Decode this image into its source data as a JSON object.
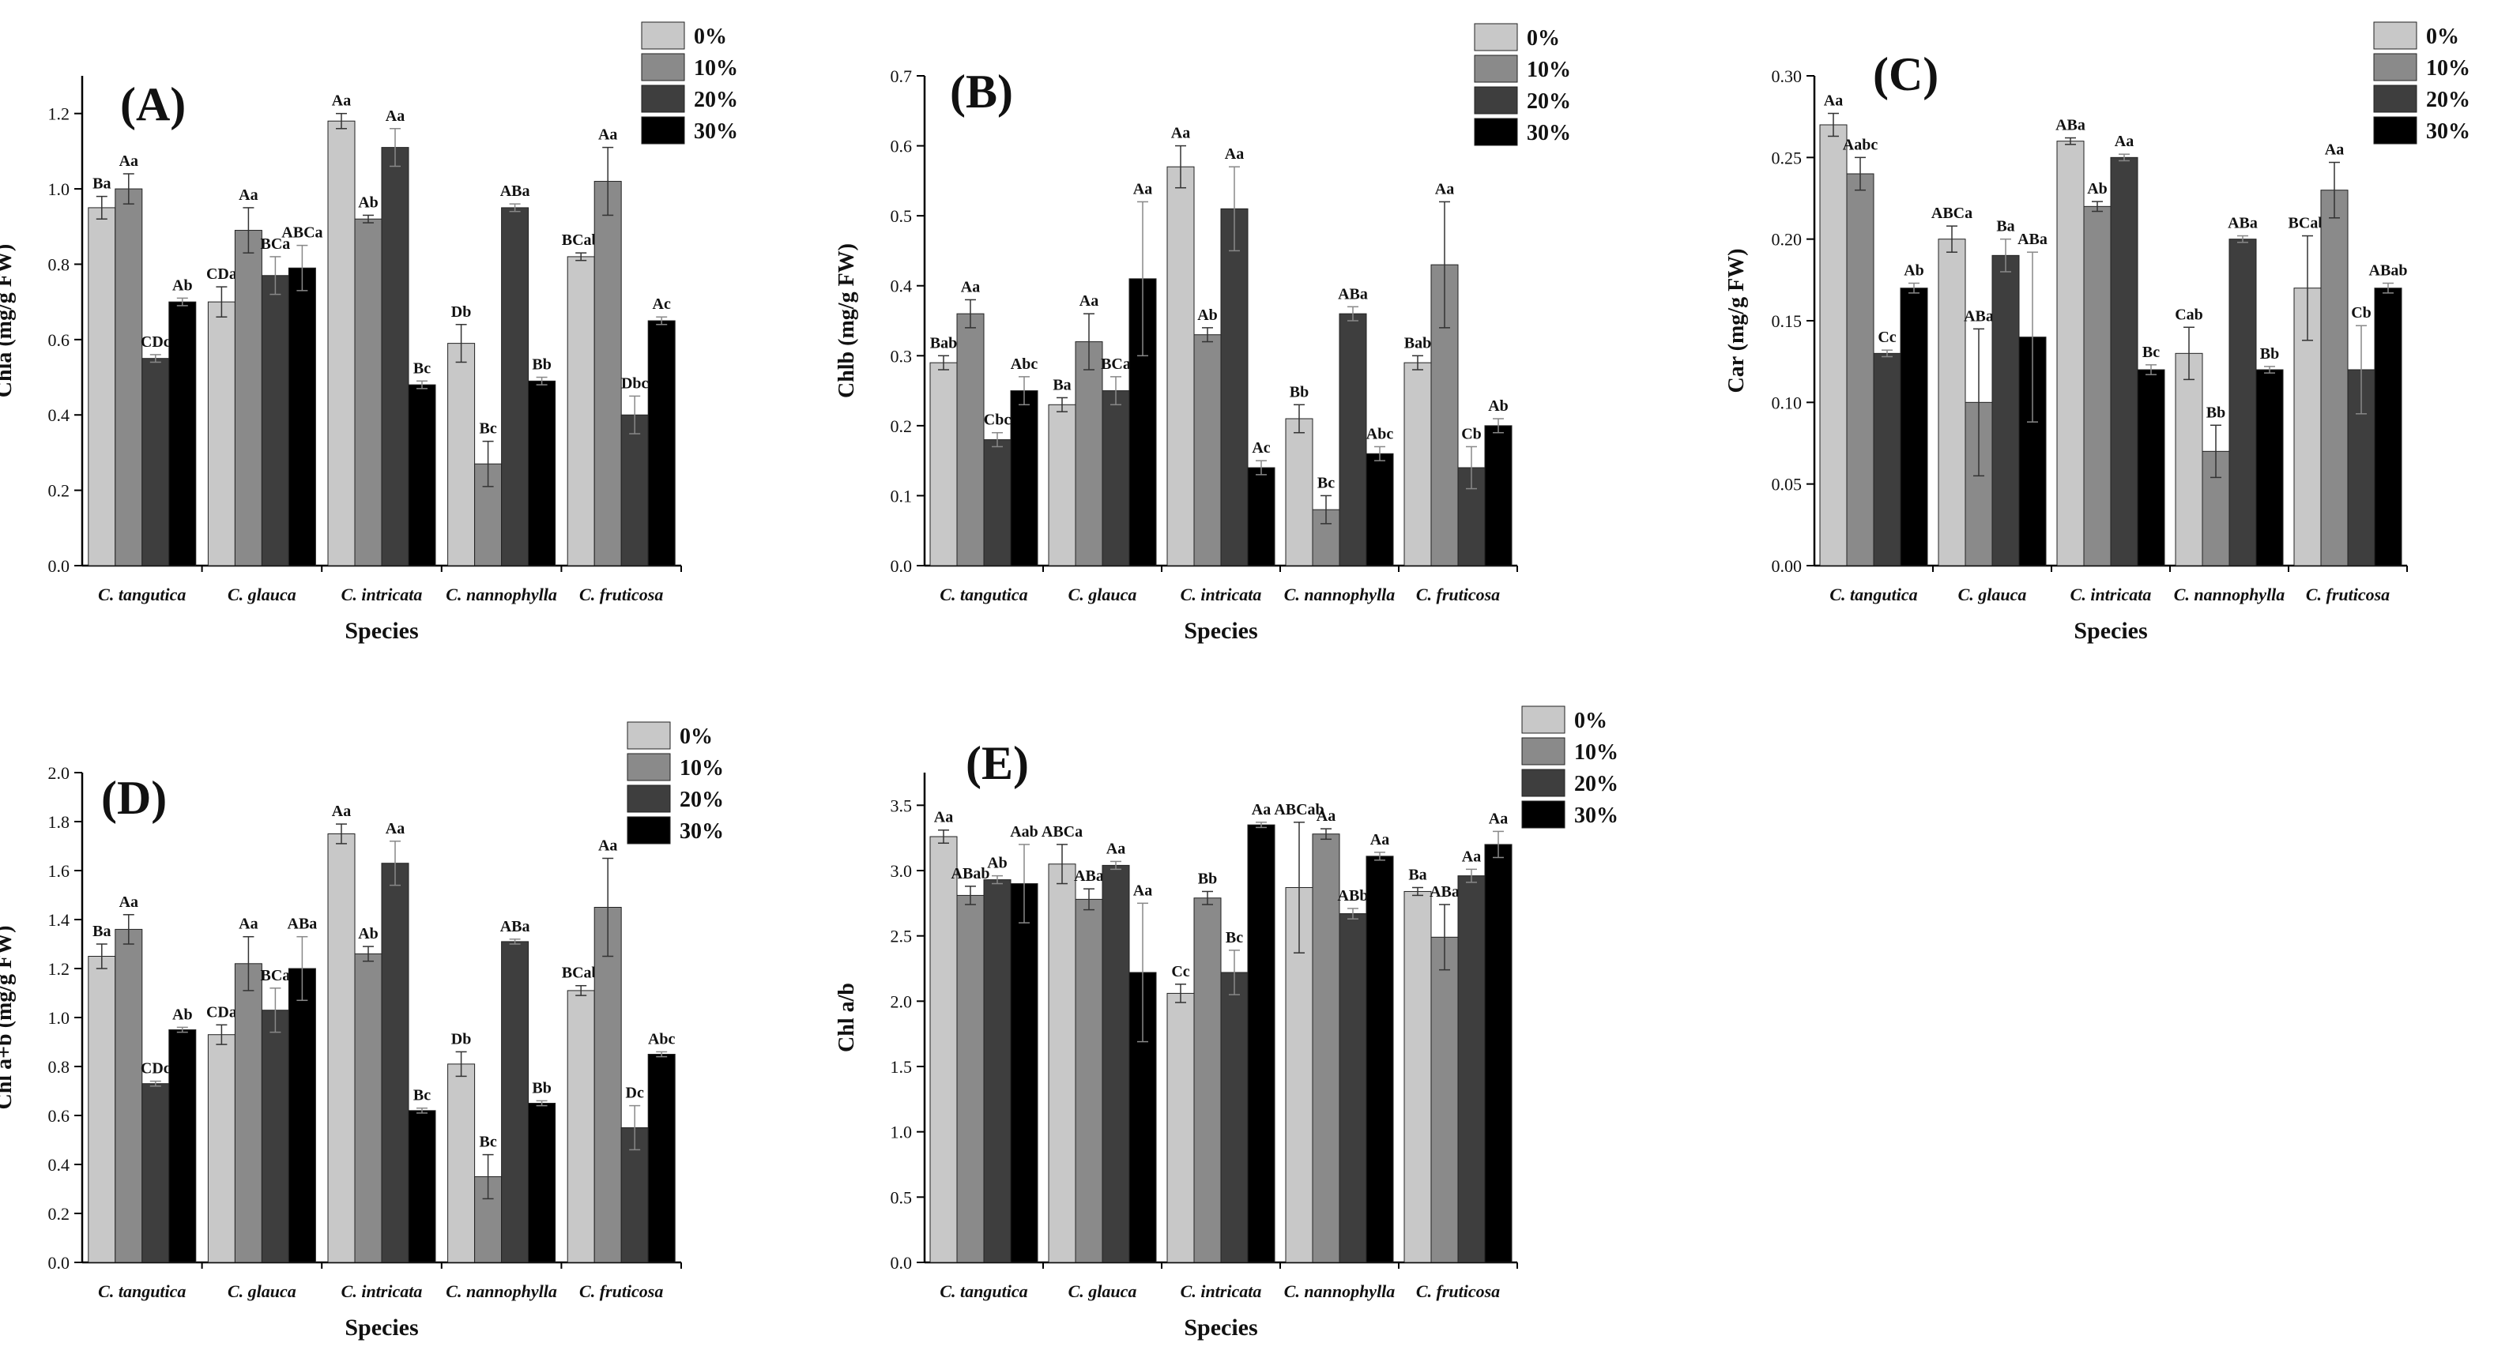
{
  "legend": [
    "0%",
    "10%",
    "20%",
    "30%"
  ],
  "colors": [
    "#c8c8c8",
    "#8a8a8a",
    "#3e3e3e",
    "#000000"
  ],
  "chart_data": [
    {
      "type": "bar",
      "panel": "(A)",
      "ylabel": "Chla (mg/g FW)",
      "xlabel": "Species",
      "categories": [
        "C. tangutica",
        "C. glauca",
        "C. intricata",
        "C. nannophylla",
        "C. fruticosa"
      ],
      "ylim": [
        0,
        1.3
      ],
      "yticks": [
        "0.0",
        "0.2",
        "0.4",
        "0.6",
        "0.8",
        "1.0",
        "1.2"
      ],
      "yticks_values": [
        0,
        0.2,
        0.4,
        0.6,
        0.8,
        1.0,
        1.2
      ],
      "series": [
        {
          "name": "0%",
          "values": [
            0.95,
            0.7,
            1.18,
            0.59,
            0.82
          ],
          "errors": [
            0.03,
            0.04,
            0.02,
            0.05,
            0.01
          ],
          "sig": [
            "Ba",
            "CDa",
            "Aa",
            "Db",
            "BCab"
          ]
        },
        {
          "name": "10%",
          "values": [
            1.0,
            0.89,
            0.92,
            0.27,
            1.02
          ],
          "errors": [
            0.04,
            0.06,
            0.01,
            0.06,
            0.09
          ],
          "sig": [
            "Aa",
            "Aa",
            "Ab",
            "Bc",
            "Aa"
          ]
        },
        {
          "name": "20%",
          "values": [
            0.55,
            0.77,
            1.11,
            0.95,
            0.4
          ],
          "errors": [
            0.01,
            0.05,
            0.05,
            0.01,
            0.05
          ],
          "sig": [
            "CDc",
            "BCa",
            "Aa",
            "ABa",
            "Dbc"
          ]
        },
        {
          "name": "30%",
          "values": [
            0.7,
            0.79,
            0.48,
            0.49,
            0.65
          ],
          "errors": [
            0.01,
            0.06,
            0.01,
            0.01,
            0.01
          ],
          "sig": [
            "Ab",
            "ABCa",
            "Bc",
            "Bb",
            "Ac"
          ]
        }
      ]
    },
    {
      "type": "bar",
      "panel": "(B)",
      "ylabel": "Chlb (mg/g FW)",
      "xlabel": "Species",
      "categories": [
        "C. tangutica",
        "C. glauca",
        "C. intricata",
        "C. nannophylla",
        "C. fruticosa"
      ],
      "ylim": [
        0,
        0.7
      ],
      "yticks": [
        "0.0",
        "0.1",
        "0.2",
        "0.3",
        "0.4",
        "0.5",
        "0.6",
        "0.7"
      ],
      "yticks_values": [
        0,
        0.1,
        0.2,
        0.3,
        0.4,
        0.5,
        0.6,
        0.7
      ],
      "series": [
        {
          "name": "0%",
          "values": [
            0.29,
            0.23,
            0.57,
            0.21,
            0.29
          ],
          "errors": [
            0.01,
            0.01,
            0.03,
            0.02,
            0.01
          ],
          "sig": [
            "Bab",
            "Ba",
            "Aa",
            "Bb",
            "Bab"
          ]
        },
        {
          "name": "10%",
          "values": [
            0.36,
            0.32,
            0.33,
            0.08,
            0.43
          ],
          "errors": [
            0.02,
            0.04,
            0.01,
            0.02,
            0.09
          ],
          "sig": [
            "Aa",
            "Aa",
            "Ab",
            "Bc",
            "Aa"
          ]
        },
        {
          "name": "20%",
          "values": [
            0.18,
            0.25,
            0.51,
            0.36,
            0.14
          ],
          "errors": [
            0.01,
            0.02,
            0.06,
            0.01,
            0.03
          ],
          "sig": [
            "Cbc",
            "BCa",
            "Aa",
            "ABa",
            "Cb"
          ]
        },
        {
          "name": "30%",
          "values": [
            0.25,
            0.41,
            0.14,
            0.16,
            0.2
          ],
          "errors": [
            0.02,
            0.11,
            0.01,
            0.01,
            0.01
          ],
          "sig": [
            "Abc",
            "Aa",
            "Ac",
            "Abc",
            "Ab"
          ]
        }
      ]
    },
    {
      "type": "bar",
      "panel": "(C)",
      "ylabel": "Car (mg/g FW)",
      "xlabel": "Species",
      "categories": [
        "C. tangutica",
        "C. glauca",
        "C. intricata",
        "C. nannophylla",
        "C. fruticosa"
      ],
      "ylim": [
        0,
        0.3
      ],
      "yticks": [
        "0.00",
        "0.05",
        "0.10",
        "0.15",
        "0.20",
        "0.25",
        "0.30"
      ],
      "yticks_values": [
        0,
        0.05,
        0.1,
        0.15,
        0.2,
        0.25,
        0.3
      ],
      "series": [
        {
          "name": "0%",
          "values": [
            0.27,
            0.2,
            0.26,
            0.13,
            0.17
          ],
          "errors": [
            0.007,
            0.008,
            0.002,
            0.016,
            0.032
          ],
          "sig": [
            "Aa",
            "ABCa",
            "ABa",
            "Cab",
            "BCab"
          ]
        },
        {
          "name": "10%",
          "values": [
            0.24,
            0.1,
            0.22,
            0.07,
            0.23
          ],
          "errors": [
            0.01,
            0.045,
            0.003,
            0.016,
            0.017
          ],
          "sig": [
            "Aabc",
            "ABa",
            "Ab",
            "Bb",
            "Aa"
          ]
        },
        {
          "name": "20%",
          "values": [
            0.13,
            0.19,
            0.25,
            0.2,
            0.12
          ],
          "errors": [
            0.002,
            0.01,
            0.002,
            0.002,
            0.027
          ],
          "sig": [
            "Cc",
            "Ba",
            "Aa",
            "ABa",
            "Cb"
          ]
        },
        {
          "name": "30%",
          "values": [
            0.17,
            0.14,
            0.12,
            0.12,
            0.17
          ],
          "errors": [
            0.003,
            0.052,
            0.003,
            0.002,
            0.003
          ],
          "sig": [
            "Ab",
            "ABa",
            "Bc",
            "Bb",
            "ABab"
          ]
        }
      ]
    },
    {
      "type": "bar",
      "panel": "(D)",
      "ylabel": "Chl a+b (mg/g FW)",
      "xlabel": "Species",
      "categories": [
        "C. tangutica",
        "C. glauca",
        "C. intricata",
        "C. nannophylla",
        "C. fruticosa"
      ],
      "ylim": [
        0,
        2.0
      ],
      "yticks": [
        "0.0",
        "0.2",
        "0.4",
        "0.6",
        "0.8",
        "1.0",
        "1.2",
        "1.4",
        "1.6",
        "1.8",
        "2.0"
      ],
      "yticks_values": [
        0,
        0.2,
        0.4,
        0.6,
        0.8,
        1.0,
        1.2,
        1.4,
        1.6,
        1.8,
        2.0
      ],
      "series": [
        {
          "name": "0%",
          "values": [
            1.25,
            0.93,
            1.75,
            0.81,
            1.11
          ],
          "errors": [
            0.05,
            0.04,
            0.04,
            0.05,
            0.02
          ],
          "sig": [
            "Ba",
            "CDa",
            "Aa",
            "Db",
            "BCab"
          ]
        },
        {
          "name": "10%",
          "values": [
            1.36,
            1.22,
            1.26,
            0.35,
            1.45
          ],
          "errors": [
            0.06,
            0.11,
            0.03,
            0.09,
            0.2
          ],
          "sig": [
            "Aa",
            "Aa",
            "Ab",
            "Bc",
            "Aa"
          ]
        },
        {
          "name": "20%",
          "values": [
            0.73,
            1.03,
            1.63,
            1.31,
            0.55
          ],
          "errors": [
            0.01,
            0.09,
            0.09,
            0.01,
            0.09
          ],
          "sig": [
            "CDc",
            "BCa",
            "Aa",
            "ABa",
            "Dc"
          ]
        },
        {
          "name": "30%",
          "values": [
            0.95,
            1.2,
            0.62,
            0.65,
            0.85
          ],
          "errors": [
            0.01,
            0.13,
            0.01,
            0.01,
            0.01
          ],
          "sig": [
            "Ab",
            "ABa",
            "Bc",
            "Bb",
            "Abc"
          ]
        }
      ]
    },
    {
      "type": "bar",
      "panel": "(E)",
      "ylabel": "Chl a/b",
      "xlabel": "Species",
      "categories": [
        "C. tangutica",
        "C. glauca",
        "C. intricata",
        "C. nannophylla",
        "C. fruticosa"
      ],
      "ylim": [
        0,
        3.75
      ],
      "yticks": [
        "0.0",
        "0.5",
        "1.0",
        "1.5",
        "2.0",
        "2.5",
        "3.0",
        "3.5"
      ],
      "yticks_values": [
        0,
        0.5,
        1.0,
        1.5,
        2.0,
        2.5,
        3.0,
        3.5
      ],
      "series": [
        {
          "name": "0%",
          "values": [
            3.26,
            3.05,
            2.06,
            2.87,
            2.84
          ],
          "errors": [
            0.05,
            0.15,
            0.07,
            0.5,
            0.03
          ],
          "sig": [
            "Aa",
            "ABCa",
            "Cc",
            "ABCab",
            "Ba"
          ]
        },
        {
          "name": "10%",
          "values": [
            2.81,
            2.78,
            2.79,
            3.28,
            2.49
          ],
          "errors": [
            0.07,
            0.08,
            0.05,
            0.04,
            0.25
          ],
          "sig": [
            "ABab",
            "ABa",
            "Bb",
            "Aa",
            "ABa"
          ]
        },
        {
          "name": "20%",
          "values": [
            2.93,
            3.04,
            2.22,
            2.67,
            2.96
          ],
          "errors": [
            0.03,
            0.03,
            0.17,
            0.04,
            0.05
          ],
          "sig": [
            "Ab",
            "Aa",
            "Bc",
            "ABb",
            "Aa"
          ]
        },
        {
          "name": "30%",
          "values": [
            2.9,
            2.22,
            3.35,
            3.11,
            3.2
          ],
          "errors": [
            0.3,
            0.53,
            0.02,
            0.03,
            0.1
          ],
          "sig": [
            "Aab",
            "Aa",
            "Aa",
            "Aa",
            "Aa"
          ]
        }
      ]
    }
  ]
}
